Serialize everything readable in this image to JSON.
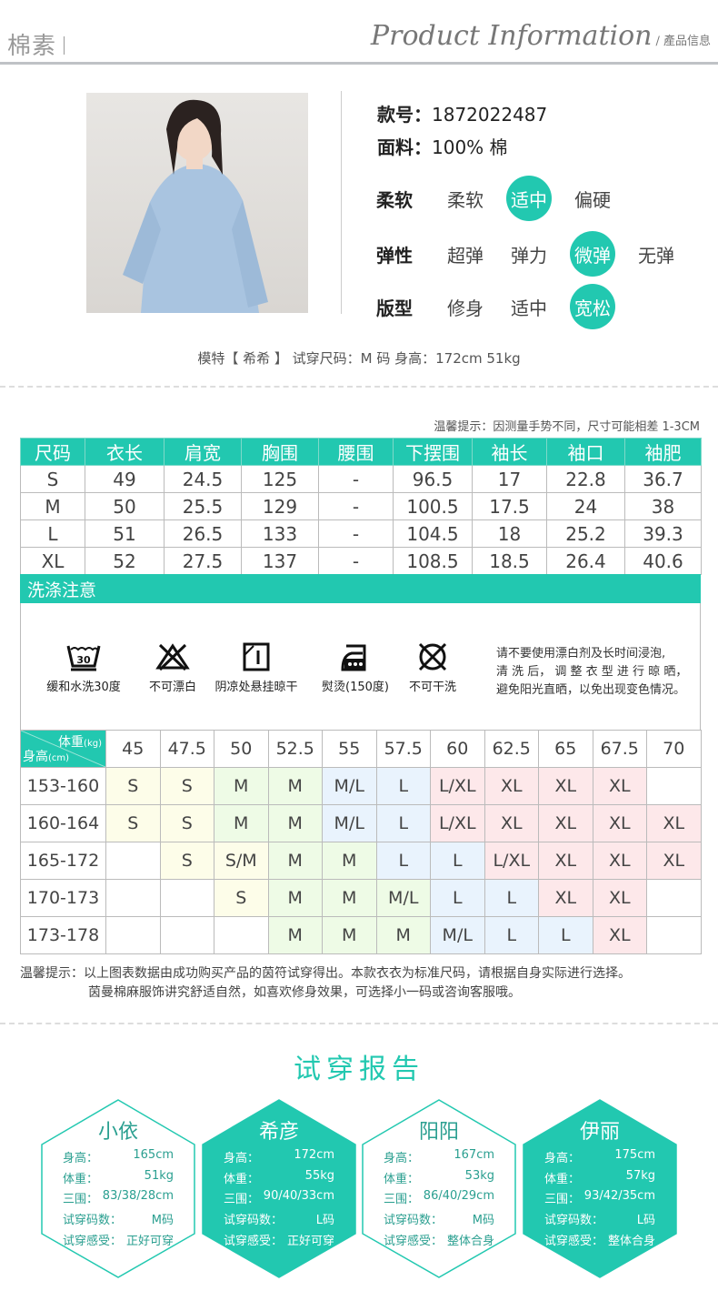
{
  "header": {
    "brand": "棉素",
    "title_en": "Product Information",
    "title_cn": "/ 產品信息"
  },
  "product": {
    "style_no_label": "款号：",
    "style_no": "1872022487",
    "fabric_label": "面料：",
    "fabric": "100% 棉",
    "attributes": [
      {
        "label": "柔软",
        "options": [
          "柔软",
          "适中",
          "偏硬"
        ],
        "selected": 1
      },
      {
        "label": "弹性",
        "options": [
          "超弹",
          "弹力",
          "微弹",
          "无弹"
        ],
        "selected": 2
      },
      {
        "label": "版型",
        "options": [
          "修身",
          "适中",
          "宽松"
        ],
        "selected": 2
      }
    ],
    "model_info": "模特【 希希 】 试穿尺码：M 码   身高：172cm  51kg"
  },
  "accent_color": "#22c8b0",
  "size_table": {
    "notice": "温馨提示：因测量手势不同，尺寸可能相差 1-3CM",
    "headers": [
      "尺码",
      "衣长",
      "肩宽",
      "胸围",
      "腰围",
      "下摆围",
      "袖长",
      "袖口",
      "袖肥"
    ],
    "rows": [
      [
        "S",
        "49",
        "24.5",
        "125",
        "-",
        "96.5",
        "17",
        "22.8",
        "36.7"
      ],
      [
        "M",
        "50",
        "25.5",
        "129",
        "-",
        "100.5",
        "17.5",
        "24",
        "38"
      ],
      [
        "L",
        "51",
        "26.5",
        "133",
        "-",
        "104.5",
        "18",
        "25.2",
        "39.3"
      ],
      [
        "XL",
        "52",
        "27.5",
        "137",
        "-",
        "108.5",
        "18.5",
        "26.4",
        "40.6"
      ]
    ]
  },
  "wash": {
    "title": "洗涤注意",
    "items": [
      {
        "icon": "wash-30-icon",
        "label": "缓和水洗30度",
        "temp": "30"
      },
      {
        "icon": "no-bleach-icon",
        "label": "不可漂白"
      },
      {
        "icon": "line-dry-shade-icon",
        "label": "阴凉处悬挂晾干"
      },
      {
        "icon": "iron-icon",
        "label": "熨烫(150度)"
      },
      {
        "icon": "no-dry-clean-icon",
        "label": "不可干洗"
      }
    ],
    "note": [
      "请不要使用漂白剂及长时间浸泡,",
      "清 洗 后， 调 整 衣 型 进 行 晾 晒，",
      "避免阳光直晒，以免出现变色情况。"
    ]
  },
  "recommend": {
    "weight_label": "体重",
    "weight_unit": "(kg)",
    "height_label": "身高",
    "height_unit": "(cm)",
    "weights": [
      "45",
      "47.5",
      "50",
      "52.5",
      "55",
      "57.5",
      "60",
      "62.5",
      "65",
      "67.5",
      "70"
    ],
    "tone_colors": {
      "y": "#fdfde9",
      "g": "#eefbe6",
      "b": "#e9f3fd",
      "r": "#fde8ea"
    },
    "rows": [
      {
        "height": "153-160",
        "cells": [
          [
            "S",
            "y"
          ],
          [
            "S",
            "y"
          ],
          [
            "M",
            "g"
          ],
          [
            "M",
            "g"
          ],
          [
            "M/L",
            "b"
          ],
          [
            "L",
            "b"
          ],
          [
            "L/XL",
            "r"
          ],
          [
            "XL",
            "r"
          ],
          [
            "XL",
            "r"
          ],
          [
            "XL",
            "r"
          ],
          [
            "",
            ""
          ]
        ]
      },
      {
        "height": "160-164",
        "cells": [
          [
            "S",
            "y"
          ],
          [
            "S",
            "y"
          ],
          [
            "M",
            "g"
          ],
          [
            "M",
            "g"
          ],
          [
            "M/L",
            "b"
          ],
          [
            "L",
            "b"
          ],
          [
            "L/XL",
            "r"
          ],
          [
            "XL",
            "r"
          ],
          [
            "XL",
            "r"
          ],
          [
            "XL",
            "r"
          ],
          [
            "XL",
            "r"
          ]
        ]
      },
      {
        "height": "165-172",
        "cells": [
          [
            "",
            ""
          ],
          [
            "S",
            "y"
          ],
          [
            "S/M",
            "y"
          ],
          [
            "M",
            "g"
          ],
          [
            "M",
            "g"
          ],
          [
            "L",
            "b"
          ],
          [
            "L",
            "b"
          ],
          [
            "L/XL",
            "r"
          ],
          [
            "XL",
            "r"
          ],
          [
            "XL",
            "r"
          ],
          [
            "XL",
            "r"
          ]
        ]
      },
      {
        "height": "170-173",
        "cells": [
          [
            "",
            ""
          ],
          [
            "",
            ""
          ],
          [
            "S",
            "y"
          ],
          [
            "M",
            "g"
          ],
          [
            "M",
            "g"
          ],
          [
            "M/L",
            "g"
          ],
          [
            "L",
            "b"
          ],
          [
            "L",
            "b"
          ],
          [
            "XL",
            "r"
          ],
          [
            "XL",
            "r"
          ],
          [
            "",
            ""
          ]
        ]
      },
      {
        "height": "173-178",
        "cells": [
          [
            "",
            ""
          ],
          [
            "",
            ""
          ],
          [
            "",
            ""
          ],
          [
            "M",
            "g"
          ],
          [
            "M",
            "g"
          ],
          [
            "M",
            "g"
          ],
          [
            "M/L",
            "b"
          ],
          [
            "L",
            "b"
          ],
          [
            "L",
            "b"
          ],
          [
            "XL",
            "r"
          ],
          [
            "",
            ""
          ]
        ]
      }
    ],
    "tip_line1": "温馨提示：以上图表数据由成功购买产品的茵符试穿得出。本款衣衣为标准尺码，请根据自身实际进行选择。",
    "tip_line2": "茵曼棉麻服饰讲究舒适自然，如喜欢修身效果，可选择小一码或咨询客服哦。"
  },
  "report": {
    "title": "试穿报告",
    "labels": [
      "身高：",
      "体重：",
      "三围：",
      "试穿码数：",
      "试穿感受："
    ],
    "people": [
      {
        "name": "小依",
        "values": [
          "165cm",
          "51kg",
          "83/38/28cm",
          "M码",
          "正好可穿"
        ],
        "style": "out"
      },
      {
        "name": "希彦",
        "values": [
          "172cm",
          "55kg",
          "90/40/33cm",
          "L码",
          "正好可穿"
        ],
        "style": "fill"
      },
      {
        "name": "阳阳",
        "values": [
          "167cm",
          "53kg",
          "86/40/29cm",
          "M码",
          "整体合身"
        ],
        "style": "out"
      },
      {
        "name": "伊丽",
        "values": [
          "175cm",
          "57kg",
          "93/42/35cm",
          "L码",
          "整体合身"
        ],
        "style": "fill"
      }
    ]
  }
}
